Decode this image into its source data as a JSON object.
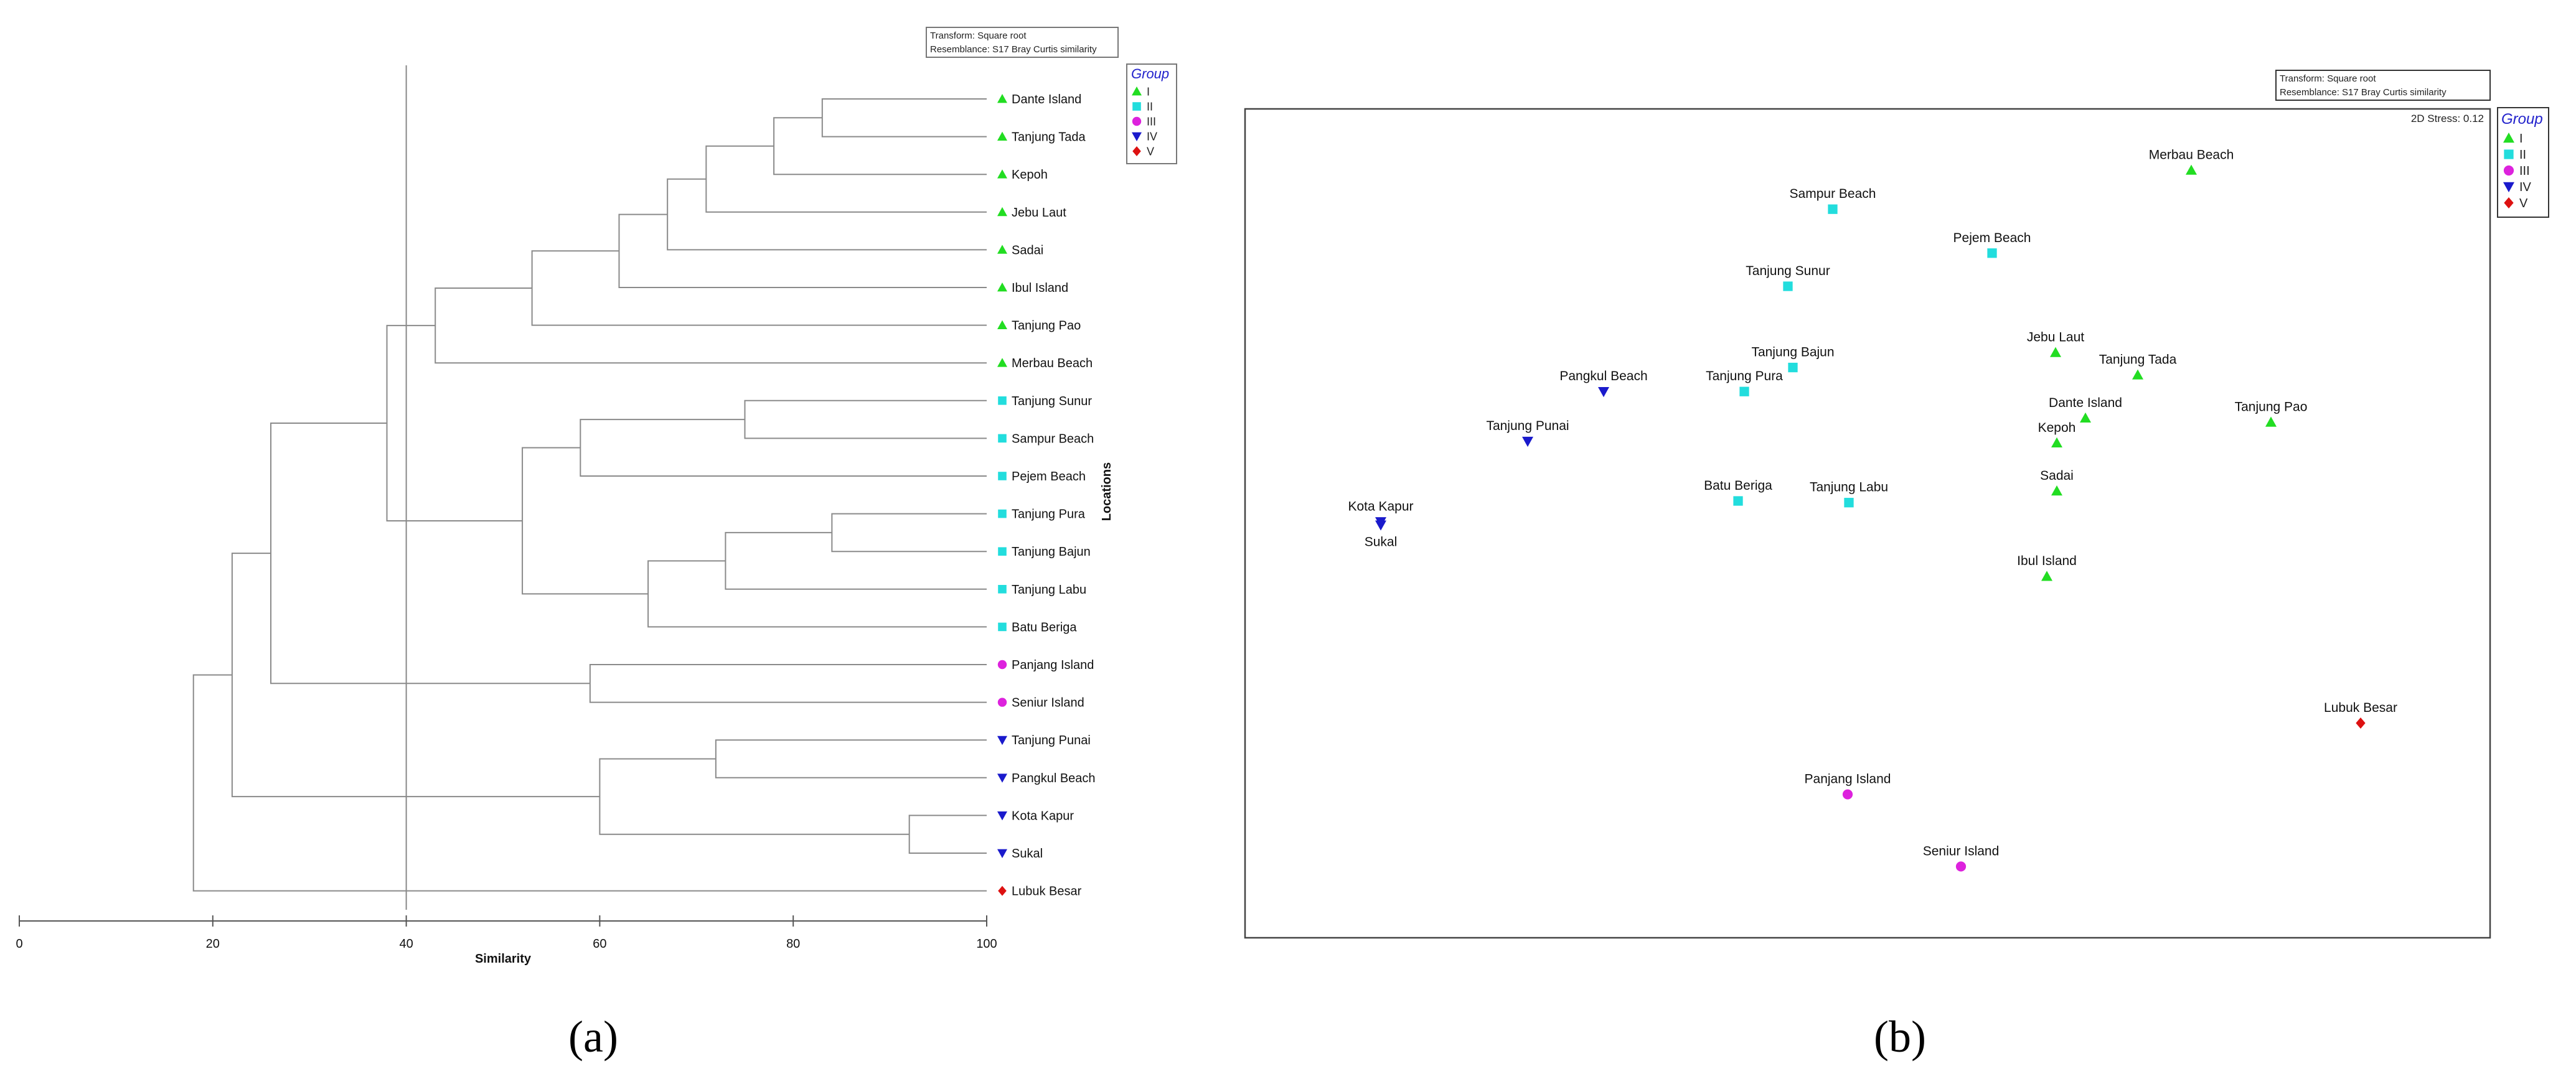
{
  "chart_data": [
    {
      "type": "dendrogram",
      "panel_label": "(a)",
      "transform_note": "Transform: Square root",
      "resemblance_note": "Resemblance: S17 Bray Curtis similarity",
      "xlabel": "Similarity",
      "ylabel": "Locations",
      "xlim": [
        0,
        100
      ],
      "xticks": [
        "0",
        "20",
        "40",
        "60",
        "80",
        "100"
      ],
      "reference_line": 40,
      "legend": {
        "title": "Group",
        "entries": [
          {
            "label": "I",
            "shape": "triangle-up",
            "color": "#22dd22"
          },
          {
            "label": "II",
            "shape": "square",
            "color": "#22dddd"
          },
          {
            "label": "III",
            "shape": "circle",
            "color": "#dd22dd"
          },
          {
            "label": "IV",
            "shape": "triangle-down",
            "color": "#1a1acc"
          },
          {
            "label": "V",
            "shape": "diamond",
            "color": "#dd1111"
          }
        ]
      },
      "leaves": [
        {
          "label": "Dante Island",
          "group": "I"
        },
        {
          "label": "Tanjung Tada",
          "group": "I"
        },
        {
          "label": "Kepoh",
          "group": "I"
        },
        {
          "label": "Jebu Laut",
          "group": "I"
        },
        {
          "label": "Sadai",
          "group": "I"
        },
        {
          "label": "Ibul Island",
          "group": "I"
        },
        {
          "label": "Tanjung Pao",
          "group": "I"
        },
        {
          "label": "Merbau Beach",
          "group": "I"
        },
        {
          "label": "Tanjung Sunur",
          "group": "II"
        },
        {
          "label": "Sampur Beach",
          "group": "II"
        },
        {
          "label": "Pejem Beach",
          "group": "II"
        },
        {
          "label": "Tanjung Pura",
          "group": "II"
        },
        {
          "label": "Tanjung Bajun",
          "group": "II"
        },
        {
          "label": "Tanjung Labu",
          "group": "II"
        },
        {
          "label": "Batu Beriga",
          "group": "II"
        },
        {
          "label": "Panjang Island",
          "group": "III"
        },
        {
          "label": "Seniur Island",
          "group": "III"
        },
        {
          "label": "Tanjung Punai",
          "group": "IV"
        },
        {
          "label": "Pangkul Beach",
          "group": "IV"
        },
        {
          "label": "Kota Kapur",
          "group": "IV"
        },
        {
          "label": "Sukal",
          "group": "IV"
        },
        {
          "label": "Lubuk Besar",
          "group": "V"
        }
      ],
      "merges": [
        {
          "id": "n1",
          "children": [
            "Dante Island",
            "Tanjung Tada"
          ],
          "similarity": 83
        },
        {
          "id": "n2",
          "children": [
            "n1",
            "Kepoh"
          ],
          "similarity": 78
        },
        {
          "id": "n3",
          "children": [
            "n2",
            "Jebu Laut"
          ],
          "similarity": 71
        },
        {
          "id": "n4",
          "children": [
            "n3",
            "Sadai"
          ],
          "similarity": 67
        },
        {
          "id": "n5",
          "children": [
            "n4",
            "Ibul Island"
          ],
          "similarity": 62
        },
        {
          "id": "n6",
          "children": [
            "n5",
            "Tanjung Pao"
          ],
          "similarity": 53
        },
        {
          "id": "n7",
          "children": [
            "n6",
            "Merbau Beach"
          ],
          "similarity": 43
        },
        {
          "id": "n8",
          "children": [
            "Tanjung Sunur",
            "Sampur Beach"
          ],
          "similarity": 75
        },
        {
          "id": "n9",
          "children": [
            "n8",
            "Pejem Beach"
          ],
          "similarity": 58
        },
        {
          "id": "n10",
          "children": [
            "Tanjung Pura",
            "Tanjung Bajun"
          ],
          "similarity": 84
        },
        {
          "id": "n11",
          "children": [
            "n10",
            "Tanjung Labu"
          ],
          "similarity": 73
        },
        {
          "id": "n12",
          "children": [
            "n11",
            "Batu Beriga"
          ],
          "similarity": 65
        },
        {
          "id": "n13",
          "children": [
            "n9",
            "n12"
          ],
          "similarity": 52
        },
        {
          "id": "n14",
          "children": [
            "n7",
            "n13"
          ],
          "similarity": 38
        },
        {
          "id": "n15",
          "children": [
            "Panjang Island",
            "Seniur Island"
          ],
          "similarity": 59
        },
        {
          "id": "n16",
          "children": [
            "n14",
            "n15"
          ],
          "similarity": 26
        },
        {
          "id": "n17",
          "children": [
            "Tanjung Punai",
            "Pangkul Beach"
          ],
          "similarity": 72
        },
        {
          "id": "n18",
          "children": [
            "Kota Kapur",
            "Sukal"
          ],
          "similarity": 92
        },
        {
          "id": "n19",
          "children": [
            "n17",
            "n18"
          ],
          "similarity": 60
        },
        {
          "id": "n20",
          "children": [
            "n16",
            "n19"
          ],
          "similarity": 22
        },
        {
          "id": "n21",
          "children": [
            "n20",
            "Lubuk Besar"
          ],
          "similarity": 18
        }
      ]
    },
    {
      "type": "scatter",
      "subtype": "nMDS",
      "panel_label": "(b)",
      "transform_note": "Transform: Square root",
      "resemblance_note": "Resemblance: S17 Bray Curtis similarity",
      "stress_label": "2D Stress: 0.12",
      "xlim": [
        0,
        100
      ],
      "ylim": [
        0,
        100
      ],
      "legend": {
        "title": "Group",
        "entries": [
          {
            "label": "I",
            "shape": "triangle-up",
            "color": "#22dd22"
          },
          {
            "label": "II",
            "shape": "square",
            "color": "#22dddd"
          },
          {
            "label": "III",
            "shape": "circle",
            "color": "#dd22dd"
          },
          {
            "label": "IV",
            "shape": "triangle-down",
            "color": "#1a1acc"
          },
          {
            "label": "V",
            "shape": "diamond",
            "color": "#dd1111"
          }
        ]
      },
      "points": [
        {
          "label": "Merbau Beach",
          "group": "I",
          "x": 76.0,
          "y": 92.6,
          "label_pos": "above"
        },
        {
          "label": "Sampur Beach",
          "group": "II",
          "x": 47.2,
          "y": 87.9,
          "label_pos": "above"
        },
        {
          "label": "Pejem Beach",
          "group": "II",
          "x": 60.0,
          "y": 82.6,
          "label_pos": "above"
        },
        {
          "label": "Tanjung Sunur",
          "group": "II",
          "x": 43.6,
          "y": 78.6,
          "label_pos": "above"
        },
        {
          "label": "Jebu Laut",
          "group": "I",
          "x": 65.1,
          "y": 70.6,
          "label_pos": "above"
        },
        {
          "label": "Tanjung Tada",
          "group": "I",
          "x": 71.7,
          "y": 67.9,
          "label_pos": "above"
        },
        {
          "label": "Tanjung Bajun",
          "group": "II",
          "x": 44.0,
          "y": 68.8,
          "label_pos": "above"
        },
        {
          "label": "Tanjung Pura",
          "group": "II",
          "x": 40.1,
          "y": 65.9,
          "label_pos": "above"
        },
        {
          "label": "Pangkul Beach",
          "group": "IV",
          "x": 28.8,
          "y": 65.9,
          "label_pos": "above"
        },
        {
          "label": "Dante Island",
          "group": "I",
          "x": 67.5,
          "y": 62.7,
          "label_pos": "above"
        },
        {
          "label": "Tanjung Pao",
          "group": "I",
          "x": 82.4,
          "y": 62.2,
          "label_pos": "above"
        },
        {
          "label": "Kepoh",
          "group": "I",
          "x": 65.2,
          "y": 59.7,
          "label_pos": "above"
        },
        {
          "label": "Tanjung Punai",
          "group": "IV",
          "x": 22.7,
          "y": 59.9,
          "label_pos": "above"
        },
        {
          "label": "Sadai",
          "group": "I",
          "x": 65.2,
          "y": 53.9,
          "label_pos": "above"
        },
        {
          "label": "Batu Beriga",
          "group": "II",
          "x": 39.6,
          "y": 52.7,
          "label_pos": "above"
        },
        {
          "label": "Tanjung Labu",
          "group": "II",
          "x": 48.5,
          "y": 52.5,
          "label_pos": "above"
        },
        {
          "label": "Kota Kapur",
          "group": "IV",
          "x": 10.9,
          "y": 50.2,
          "label_pos": "above"
        },
        {
          "label": "Sukal",
          "group": "IV",
          "x": 10.9,
          "y": 49.8,
          "label_pos": "below"
        },
        {
          "label": "Ibul Island",
          "group": "I",
          "x": 64.4,
          "y": 43.6,
          "label_pos": "above"
        },
        {
          "label": "Lubuk Besar",
          "group": "V",
          "x": 89.6,
          "y": 25.9,
          "label_pos": "above"
        },
        {
          "label": "Panjang Island",
          "group": "III",
          "x": 48.4,
          "y": 17.3,
          "label_pos": "above"
        },
        {
          "label": "Seniur Island",
          "group": "III",
          "x": 57.5,
          "y": 8.6,
          "label_pos": "above"
        }
      ]
    }
  ]
}
